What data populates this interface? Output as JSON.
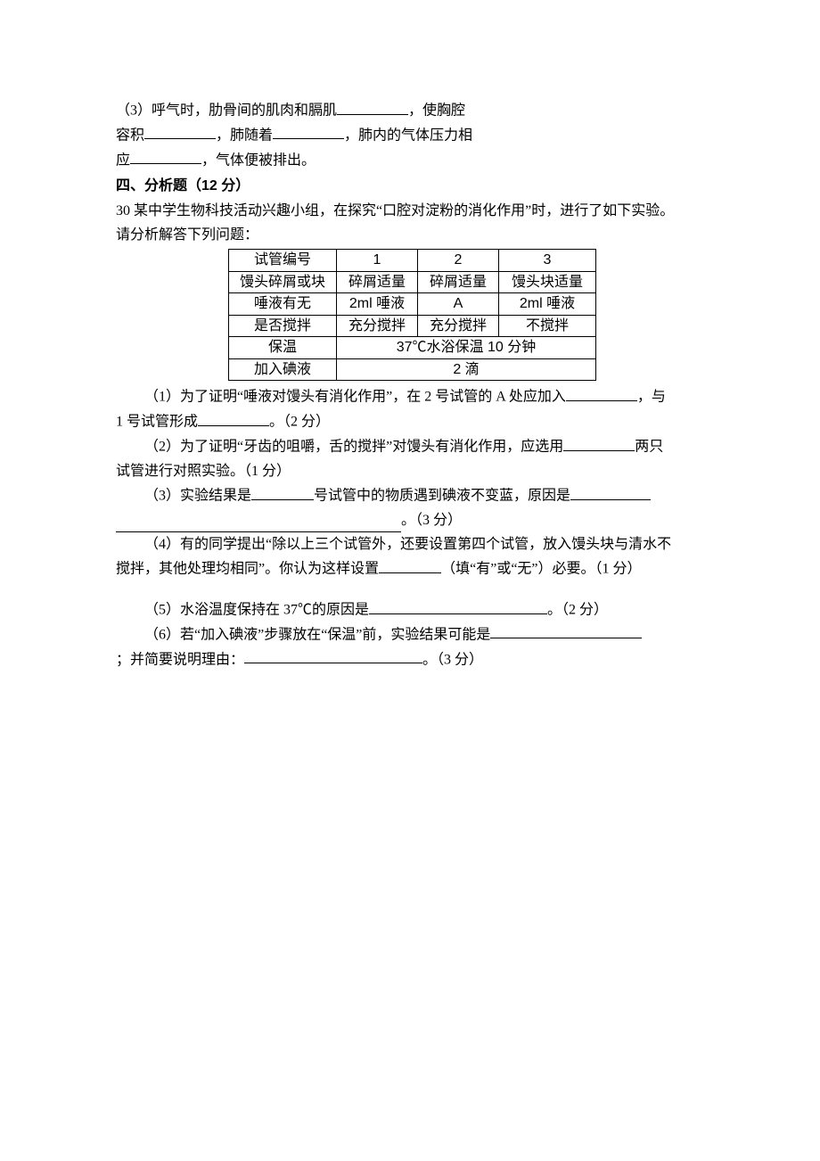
{
  "q3_prefix": "（3）呼气时，肋骨间的肌肉和膈肌",
  "q3_after_blank1": "，使胸腔",
  "q3_line2_prefix": "容积",
  "q3_line2_mid": "，肺随着",
  "q3_line2_after": "，肺内的气体压力相",
  "q3_line3_prefix": "应",
  "q3_line3_after": "，气体便被排出。",
  "section4_title": "四、分析题（12 分）",
  "q30_intro_line1": "30 某中学生物科技活动兴趣小组，在探究“口腔对淀粉的消化作用”时，进行了如下实验。",
  "q30_intro_line2": "请分析解答下列问题：",
  "table": {
    "rows": [
      {
        "c1": "试管编号",
        "c2": "1",
        "c3": "2",
        "c4": "3"
      },
      {
        "c1": "馒头碎屑或块",
        "c2": "碎屑适量",
        "c3": "碎屑适量",
        "c4": "馒头块适量"
      },
      {
        "c1": "唾液有无",
        "c2": "2ml 唾液",
        "c3": "A",
        "c4": "2ml 唾液"
      },
      {
        "c1": "是否搅拌",
        "c2": "充分搅拌",
        "c3": "充分搅拌",
        "c4": "不搅拌"
      },
      {
        "c1": "保温",
        "merged": "37℃水浴保温 10 分钟"
      },
      {
        "c1": "加入碘液",
        "merged": "2 滴"
      }
    ]
  },
  "q1_a": "（1）为了证明“唾液对馒头有消化作用”，在 2 号试管的 A 处应加入",
  "q1_b": "，与",
  "q1_c": "1 号试管形成",
  "q1_d": "。（2 分）",
  "q2_a": "（2）为了证明“牙齿的咀嚼，舌的搅拌”对馒头有消化作用，应选用",
  "q2_b": "两只",
  "q2_c": "试管进行对照实验。（1 分）",
  "q3a_a": "（3）实验结果是",
  "q3a_b": "号试管中的物质遇到碘液不变蓝，原因是",
  "q3a_c": "。（3 分）",
  "q4_a": "（4）有的同学提出“除以上三个试管外，还要设置第四个试管，放入馒头块与清水不",
  "q4_b": "搅拌，其他处理均相同”。你认为这样设置",
  "q4_c": "（填“有”或“无”）必要。（1 分）",
  "q5_a": "（5）水浴温度保持在 37℃的原因是",
  "q5_b": "。（2 分）",
  "q6_a": "（6）若“加入碘液”步骤放在“保温”前，实验结果可能是",
  "q6_b": "；并简要说明理由：",
  "q6_c": "。（3 分）"
}
